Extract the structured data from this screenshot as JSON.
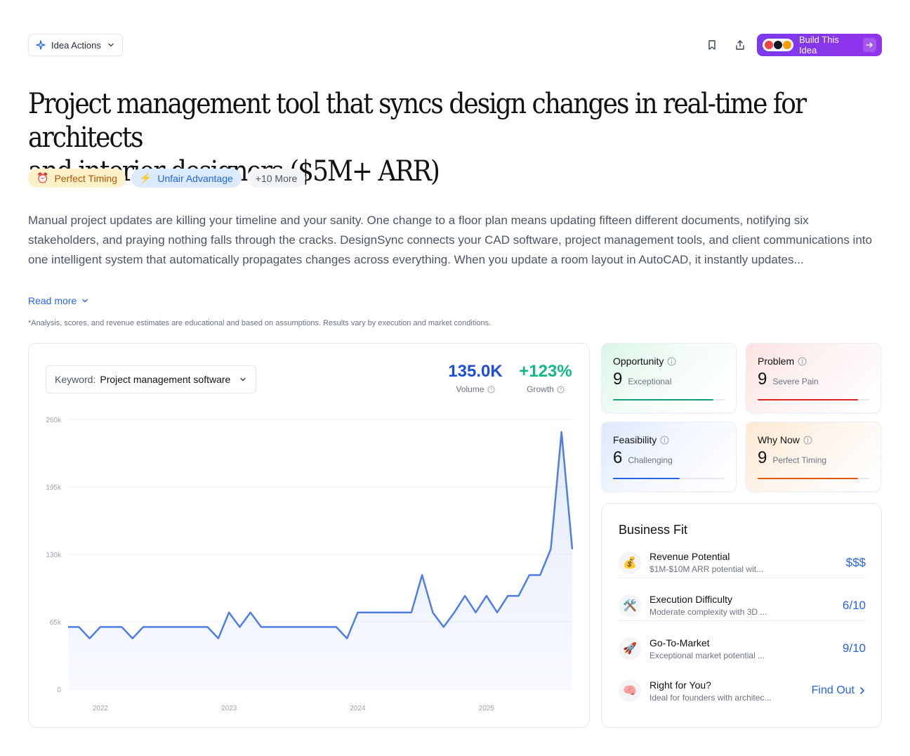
{
  "toolbar": {
    "idea_actions_label": "Idea Actions",
    "build_label": "Build This Idea"
  },
  "title": {
    "line1": "Project management tool that syncs design changes in real-time for architects",
    "line2": "and interior designers ($5M+ ARR)"
  },
  "tags": [
    {
      "icon": "⏰",
      "label": "Perfect Timing"
    },
    {
      "icon": "⚡",
      "label": "Unfair Advantage"
    },
    {
      "label": "+10 More"
    }
  ],
  "description": "Manual project updates are killing your timeline and your sanity. One change to a floor plan means updating fifteen different documents, notifying six stakeholders, and praying nothing falls through the cracks. DesignSync connects your CAD software, project management tools, and client communications into one intelligent system that automatically propagates changes across everything. When you update a room layout in AutoCAD, it instantly updates...",
  "read_more": "Read more",
  "disclaimer": "*Analysis, scores, and revenue estimates are educational and based on assumptions. Results vary by execution and market conditions.",
  "keyword": {
    "label": "Keyword:",
    "value": "Project management software"
  },
  "stats": {
    "volume": {
      "value": "135.0K",
      "label": "Volume"
    },
    "growth": {
      "value": "+123%",
      "label": "Growth"
    }
  },
  "chart_data": {
    "type": "area",
    "y_ticks": [
      "0",
      "65k",
      "130k",
      "195k",
      "260k"
    ],
    "ylim": [
      0,
      260000
    ],
    "x_ticks": [
      "2022",
      "2023",
      "2024",
      "2025"
    ],
    "x_tick_index": [
      3,
      15,
      27,
      39
    ],
    "values": [
      60000,
      60000,
      49000,
      60000,
      60000,
      60000,
      49000,
      60000,
      60000,
      60000,
      60000,
      60000,
      60000,
      60000,
      49000,
      74000,
      60000,
      74000,
      60000,
      60000,
      60000,
      60000,
      60000,
      60000,
      60000,
      60000,
      49000,
      74000,
      74000,
      74000,
      74000,
      74000,
      74000,
      110000,
      74000,
      60000,
      74000,
      90000,
      74000,
      90000,
      74000,
      90000,
      90000,
      110000,
      110000,
      135000,
      248000,
      135000
    ],
    "color": "#4f7de8"
  },
  "scores": {
    "opportunity": {
      "title": "Opportunity",
      "value": "9",
      "label": "Exceptional",
      "level": 0.9,
      "color": "#10a37f"
    },
    "problem": {
      "title": "Problem",
      "value": "9",
      "label": "Severe Pain",
      "level": 0.9,
      "color": "#dc2626"
    },
    "feasibility": {
      "title": "Feasibility",
      "value": "6",
      "label": "Challenging",
      "level": 0.6,
      "color": "#2563eb"
    },
    "why_now": {
      "title": "Why Now",
      "value": "9",
      "label": "Perfect Timing",
      "level": 0.9,
      "color": "#ea580c"
    }
  },
  "business_fit": {
    "title": "Business Fit",
    "items": [
      {
        "icon": "💰",
        "name": "Revenue Potential",
        "sub": "$1M-$10M ARR potential wit...",
        "value": "$$$"
      },
      {
        "icon": "🛠️",
        "name": "Execution Difficulty",
        "sub": "Moderate complexity with 3D ...",
        "value": "6/10"
      },
      {
        "icon": "🚀",
        "name": "Go-To-Market",
        "sub": "Exceptional market potential ...",
        "value": "9/10"
      },
      {
        "icon": "🧠",
        "name": "Right for You?",
        "sub": "Ideal for founders with architec...",
        "value": "Find Out"
      }
    ]
  }
}
